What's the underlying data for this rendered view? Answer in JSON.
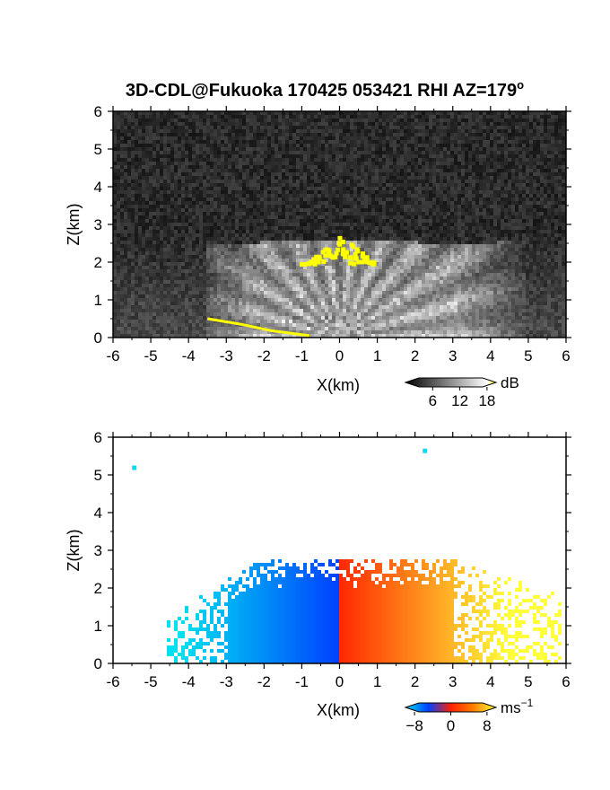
{
  "chart_data": [
    {
      "type": "heatmap",
      "title": "3D-CDL@Fukuoka 170425 053421 RHI AZ=179",
      "title_superscript": "o",
      "xlabel": "X(km)",
      "ylabel": "Z(km)",
      "xlim": [
        -6,
        6
      ],
      "ylim": [
        0,
        6
      ],
      "x_ticks": [
        "-6",
        "-5",
        "-4",
        "-3",
        "-2",
        "-1",
        "0",
        "1",
        "2",
        "3",
        "4",
        "5",
        "6"
      ],
      "y_ticks": [
        "0",
        "1",
        "2",
        "3",
        "4",
        "5",
        "6"
      ],
      "colorbar": {
        "unit": "dB",
        "ticks": [
          "6",
          "12",
          "18"
        ],
        "tick_values": [
          6,
          12,
          18
        ],
        "range": [
          0,
          20
        ],
        "colors": [
          "#000000",
          "#ffffff",
          "#ffff00"
        ]
      },
      "quantity": "backscatter intensity",
      "background": "#202020",
      "features": {
        "fan_apex": [
          0.0,
          0.0
        ],
        "fan_top_km": 2.6,
        "fan_x_range": [
          -2.0,
          3.4
        ],
        "strong_echo_top": {
          "x_range": [
            -1.1,
            0.9
          ],
          "z_range": [
            2.0,
            2.7
          ],
          "color": "#ffff00"
        },
        "strong_echo_ground": [
          [
            -3.5,
            0.5
          ],
          [
            -2.6,
            0.35
          ],
          [
            -1.8,
            0.18
          ],
          [
            -0.8,
            0.05
          ]
        ]
      }
    },
    {
      "type": "heatmap",
      "xlabel": "X(km)",
      "ylabel": "Z(km)",
      "xlim": [
        -6,
        6
      ],
      "ylim": [
        0,
        6
      ],
      "x_ticks": [
        "-6",
        "-5",
        "-4",
        "-3",
        "-2",
        "-1",
        "0",
        "1",
        "2",
        "3",
        "4",
        "5",
        "6"
      ],
      "y_ticks": [
        "0",
        "1",
        "2",
        "3",
        "4",
        "5",
        "6"
      ],
      "colorbar": {
        "unit": "ms",
        "unit_superscript": "−1",
        "ticks": [
          "−8",
          "0",
          "8"
        ],
        "tick_values": [
          -8,
          0,
          8
        ],
        "range": [
          -10,
          10
        ],
        "colors": [
          "#00e0f0",
          "#0040ff",
          "#ff2000",
          "#ff8000",
          "#ffff40"
        ]
      },
      "quantity": "Doppler velocity",
      "background": "#ffffff",
      "features": {
        "negative_region": {
          "x_range": [
            -4.5,
            0.0
          ],
          "z_top_km": 2.8,
          "velocity_range": [
            -8,
            -2
          ]
        },
        "positive_region": {
          "x_range": [
            0.0,
            5.8
          ],
          "z_top_km": 2.8,
          "velocity_range": [
            2,
            8
          ]
        },
        "isolated_points": [
          [
            -5.45,
            5.2
          ],
          [
            2.25,
            5.65
          ]
        ]
      }
    }
  ]
}
